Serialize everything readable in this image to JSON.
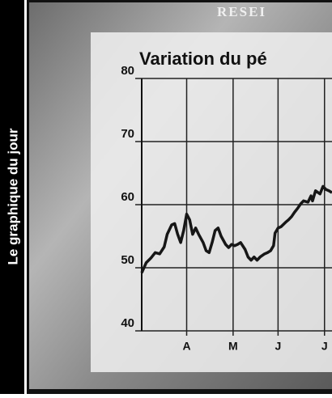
{
  "sidebar_label": "Le graphique du jour",
  "background_text": "RESEI",
  "chart_data": {
    "type": "line",
    "title": "Variation du pé",
    "x": [
      0,
      3,
      6,
      9,
      12,
      15,
      17,
      20,
      22,
      24,
      26,
      28,
      30,
      32,
      34,
      36,
      38,
      41,
      43,
      45,
      47,
      49,
      51,
      53,
      56,
      58,
      60,
      62,
      64,
      66,
      69,
      71,
      73,
      75,
      77,
      79,
      82,
      84,
      86,
      88,
      89,
      91,
      93,
      96,
      98,
      100,
      102,
      104,
      106,
      108,
      111,
      113,
      114,
      116,
      119,
      121,
      123,
      125,
      127
    ],
    "series": [
      {
        "color": "#161616",
        "values": [
          49.2,
          50.8,
          51.5,
          52.4,
          52.2,
          53.3,
          55.3,
          56.8,
          57.0,
          55.3,
          54.0,
          55.9,
          58.5,
          57.6,
          55.3,
          56.3,
          55.3,
          54.0,
          52.7,
          52.4,
          54.0,
          55.9,
          56.3,
          55.0,
          53.7,
          53.2,
          53.7,
          53.5,
          53.7,
          54.0,
          52.9,
          51.7,
          51.2,
          51.7,
          51.2,
          51.7,
          52.2,
          52.4,
          52.7,
          53.5,
          55.5,
          56.3,
          56.5,
          57.2,
          57.6,
          58.1,
          58.8,
          59.4,
          60.1,
          60.6,
          60.4,
          61.4,
          60.6,
          62.2,
          61.7,
          62.9,
          62.4,
          62.2,
          61.9
        ]
      }
    ],
    "xlim": [
      0,
      127
    ],
    "xticks": [
      {
        "value": 30,
        "label": "A"
      },
      {
        "value": 61,
        "label": "M"
      },
      {
        "value": 91,
        "label": "J"
      },
      {
        "value": 122,
        "label": "J"
      }
    ],
    "ylim": [
      40,
      80
    ],
    "yticks": [
      40,
      50,
      60,
      70,
      80
    ],
    "grid": true
  }
}
